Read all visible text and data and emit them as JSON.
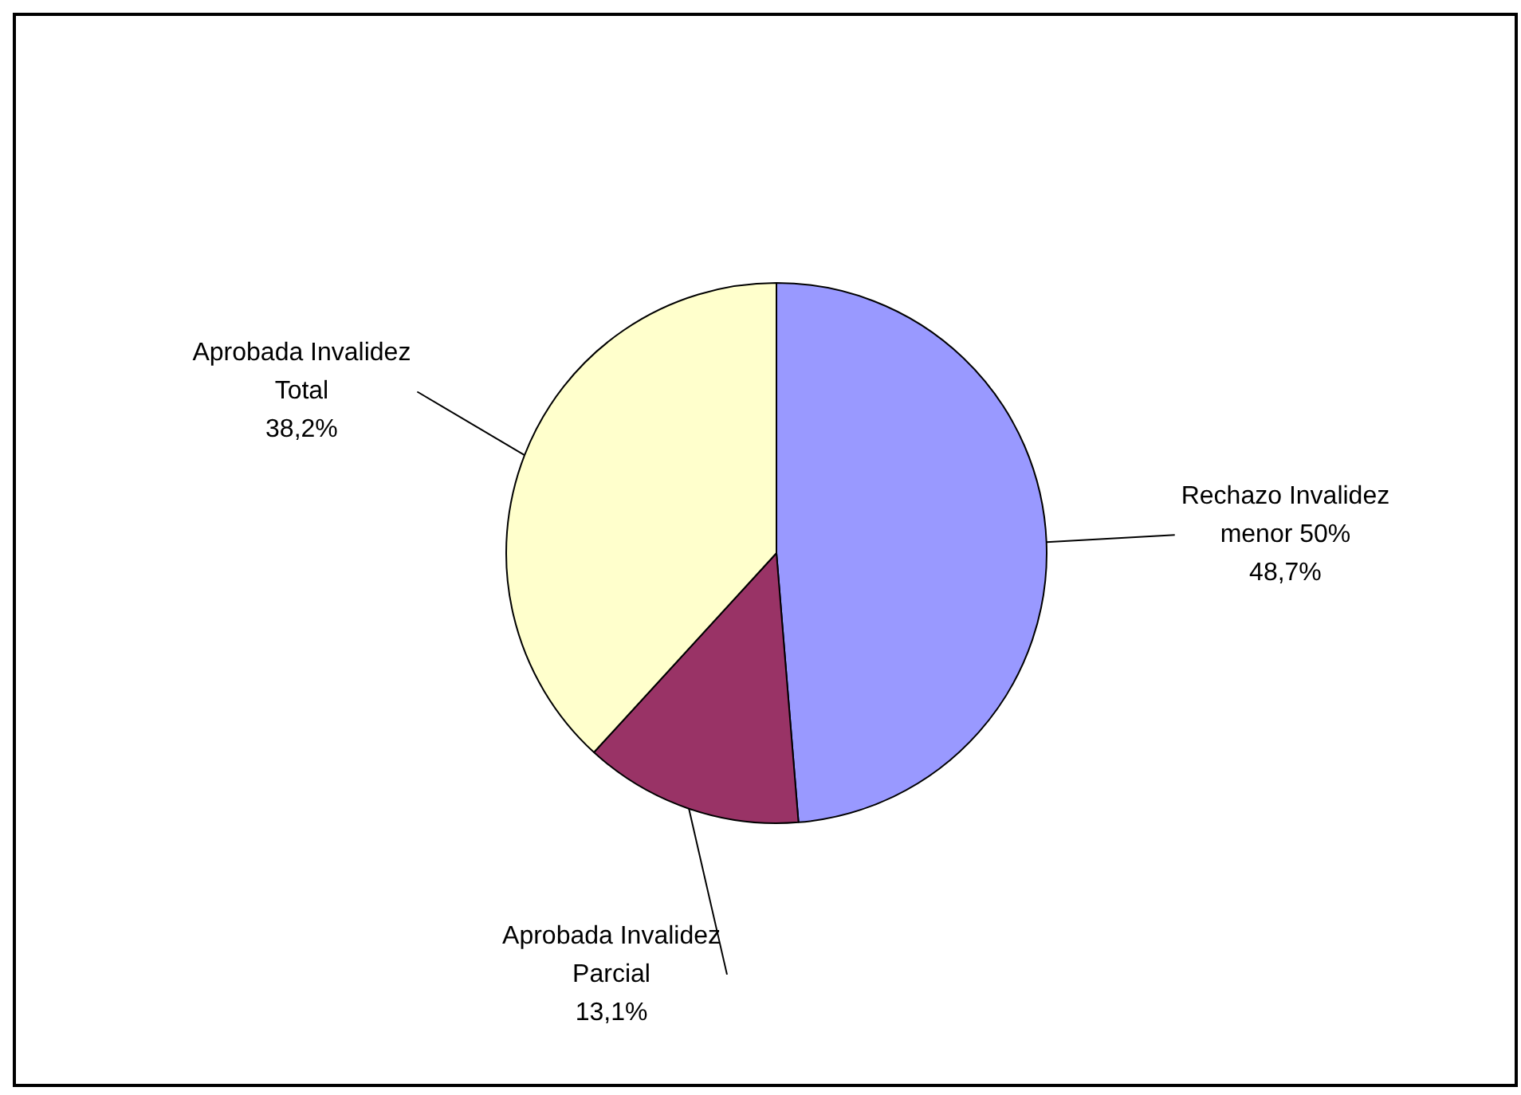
{
  "chart_data": {
    "type": "pie",
    "categories": [
      "Rechazo Invalidez menor 50%",
      "Aprobada Invalidez Parcial",
      "Aprobada Invalidez Total"
    ],
    "values": [
      48.7,
      13.1,
      38.2
    ],
    "colors": [
      "#9999ff",
      "#993366",
      "#ffffcc"
    ],
    "value_labels": [
      "48,7%",
      "13,1%",
      "38,2%"
    ],
    "legend": false
  }
}
